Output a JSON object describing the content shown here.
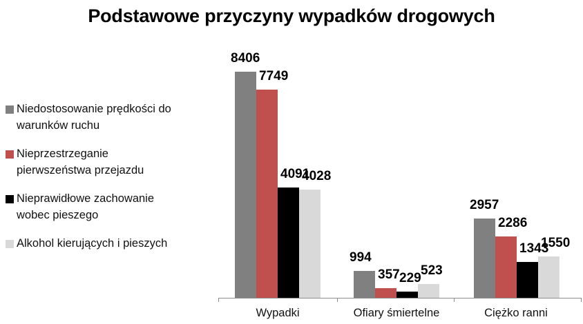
{
  "title": "Podstawowe przyczyny wypadków drogowych",
  "legend": [
    {
      "label_line1": "Niedostosowanie prędkości do",
      "label_line2": "warunków ruchu",
      "color": "#808080"
    },
    {
      "label_line1": "Nieprzestrzeganie",
      "label_line2": "pierwszeństwa przejazdu",
      "color": "#c0504d"
    },
    {
      "label_line1": "Nieprawidłowe zachowanie",
      "label_line2": "wobec pieszego",
      "color": "#000000"
    },
    {
      "label_line1": "Alkohol kierujących i pieszych",
      "label_line2": "",
      "color": "#d9d9d9"
    }
  ],
  "chart_data": {
    "type": "bar",
    "title": "Podstawowe przyczyny wypadków drogowych",
    "xlabel": "",
    "ylabel": "",
    "categories": [
      "Wypadki",
      "Ofiary śmiertelne",
      "Ciężko ranni"
    ],
    "series": [
      {
        "name": "Niedostosowanie prędkości do warunków ruchu",
        "color": "#808080",
        "values": [
          8406,
          994,
          2957
        ]
      },
      {
        "name": "Nieprzestrzeganie pierwszeństwa przejazdu",
        "color": "#c0504d",
        "values": [
          7749,
          357,
          2286
        ]
      },
      {
        "name": "Nieprawidłowe zachowanie wobec pieszego",
        "color": "#000000",
        "values": [
          4091,
          229,
          1343
        ]
      },
      {
        "name": "Alkohol kierujących i pieszych",
        "color": "#d9d9d9",
        "values": [
          4028,
          523,
          1550
        ]
      }
    ],
    "ylim": [
      0,
      8406
    ],
    "grid": false,
    "y_axis_visible": false,
    "data_labels": true,
    "legend_position": "left"
  }
}
